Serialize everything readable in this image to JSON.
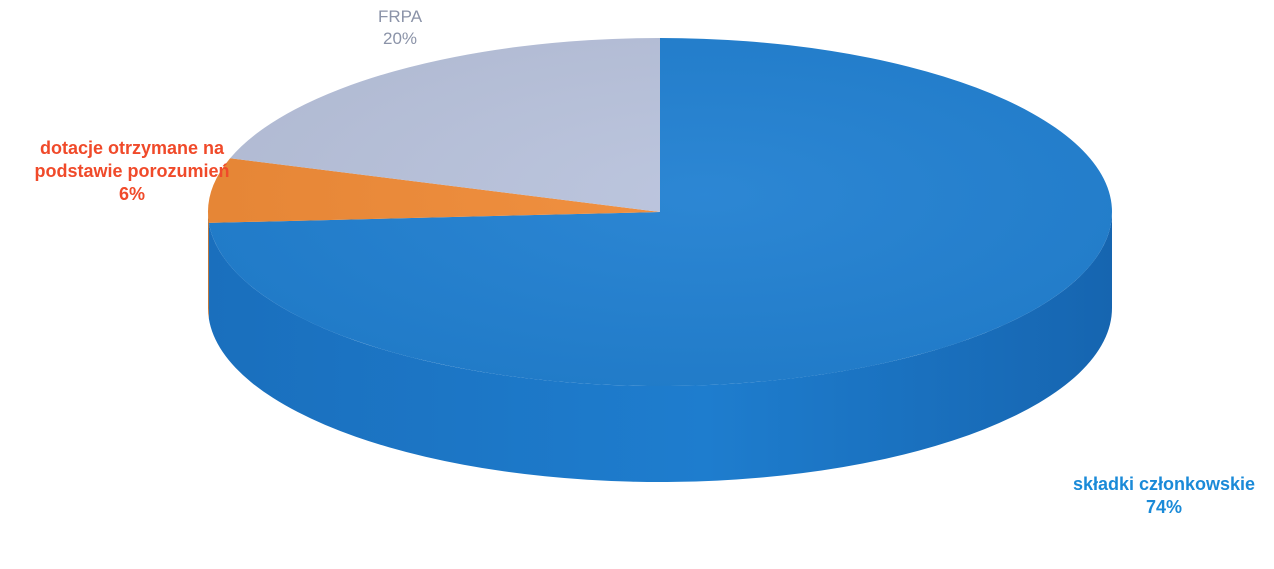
{
  "chart_data": {
    "type": "pie",
    "title": "",
    "style": "3d",
    "slices": [
      {
        "label": "składki członkowskie",
        "value": 74,
        "value_label": "74%",
        "color": "#1f7fd1",
        "label_color": "#1a8ad8"
      },
      {
        "label": "dotacje otrzymane na podstawie porozumień",
        "value": 6,
        "value_label": "6%",
        "color": "#f08a35",
        "label_color": "#f04a2a"
      },
      {
        "label": "FRPA",
        "value": 20,
        "value_label": "20%",
        "color": "#b8c2dc",
        "label_color": "#8b93a8"
      }
    ],
    "legend": false
  }
}
